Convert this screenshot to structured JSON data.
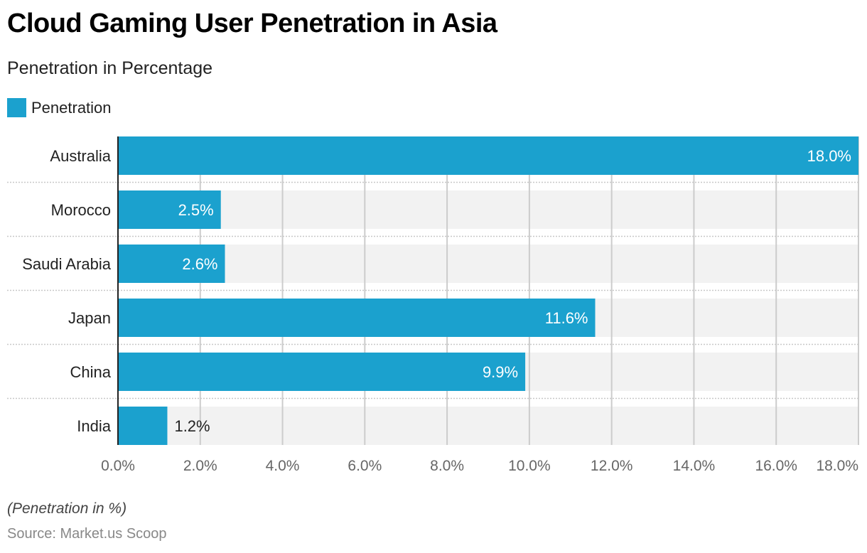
{
  "title": "Cloud Gaming User Penetration in Asia",
  "subtitle": "Penetration in Percentage",
  "legend": {
    "label": "Penetration",
    "color": "#1ba1ce"
  },
  "note": "(Penetration in %)",
  "source": "Source: Market.us Scoop",
  "colors": {
    "bar": "#1ba1ce",
    "band": "#f2f2f2",
    "grid": "#cccccc",
    "axis": "#222222",
    "tick": "#666666"
  },
  "chart_data": {
    "type": "bar",
    "orientation": "horizontal",
    "title": "Cloud Gaming User Penetration in Asia",
    "subtitle": "Penetration in Percentage",
    "xlabel": "",
    "ylabel": "",
    "categories": [
      "Australia",
      "Morocco",
      "Saudi Arabia",
      "Japan",
      "China",
      "India"
    ],
    "series": [
      {
        "name": "Penetration",
        "values": [
          18.0,
          2.5,
          2.6,
          11.6,
          9.9,
          1.2
        ]
      }
    ],
    "data_labels": [
      "18.0%",
      "2.5%",
      "2.6%",
      "11.6%",
      "9.9%",
      "1.2%"
    ],
    "xlim": [
      0,
      18
    ],
    "xticks": [
      0,
      2,
      4,
      6,
      8,
      10,
      12,
      14,
      16,
      18
    ],
    "xtick_labels": [
      "0.0%",
      "2.0%",
      "4.0%",
      "6.0%",
      "8.0%",
      "10.0%",
      "12.0%",
      "14.0%",
      "16.0%",
      "18.0%"
    ],
    "grid": true,
    "legend_position": "top-left"
  }
}
